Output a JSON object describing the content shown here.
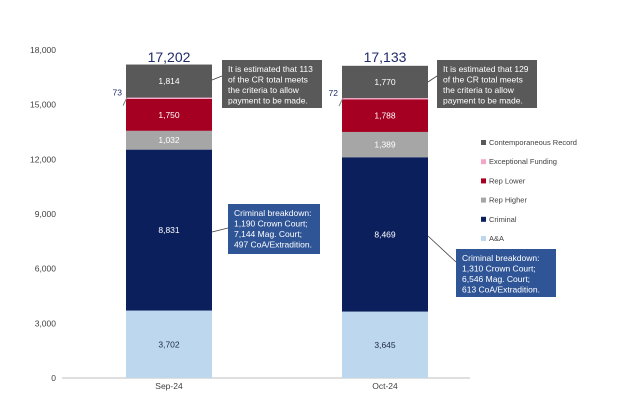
{
  "chart_data": {
    "type": "bar",
    "stacked": true,
    "categories": [
      "Sep-24",
      "Oct-24"
    ],
    "totals": [
      "17,202",
      "17,133"
    ],
    "ylim": [
      0,
      18000
    ],
    "yticks": [
      {
        "value": 0,
        "label": "0"
      },
      {
        "value": 3000,
        "label": "3,000"
      },
      {
        "value": 6000,
        "label": "6,000"
      },
      {
        "value": 9000,
        "label": "9,000"
      },
      {
        "value": 12000,
        "label": "12,000"
      },
      {
        "value": 15000,
        "label": "15,000"
      },
      {
        "value": 18000,
        "label": "18,000"
      }
    ],
    "series": [
      {
        "name": "A&A",
        "color": "#bdd7ee",
        "values": [
          3702,
          3645
        ],
        "labels": [
          "3,702",
          "3,645"
        ],
        "label_color": "#1f2a44"
      },
      {
        "name": "Criminal",
        "color": "#0b1f5c",
        "values": [
          8831,
          8469
        ],
        "labels": [
          "8,831",
          "8,469"
        ],
        "label_color": "#ffffff"
      },
      {
        "name": "Rep Higher",
        "color": "#a6a6a6",
        "values": [
          1032,
          1389
        ],
        "labels": [
          "1,032",
          "1,389"
        ],
        "label_color": "#ffffff"
      },
      {
        "name": "Rep Lower",
        "color": "#a50021",
        "values": [
          1750,
          1788
        ],
        "labels": [
          "1,750",
          "1,788"
        ],
        "label_color": "#ffffff"
      },
      {
        "name": "Exceptional Funding",
        "color": "#f4a6c8",
        "values": [
          73,
          72
        ],
        "labels": [
          "73",
          "72"
        ],
        "label_color": "#1f2a6b"
      },
      {
        "name": "Contemporaneous Record",
        "color": "#595959",
        "values": [
          1814,
          1770
        ],
        "labels": [
          "1,814",
          "1,770"
        ],
        "label_color": "#ffffff"
      }
    ],
    "legend_order": [
      "Contemporaneous Record",
      "Exceptional Funding",
      "Rep Lower",
      "Rep Higher",
      "Criminal",
      "A&A"
    ],
    "legend_position": "right",
    "annotations": {
      "cr": [
        [
          "It is estimated that 113",
          "of the CR total meets",
          "the criteria to allow",
          "payment to be made."
        ],
        [
          "It is estimated that 129",
          "of the CR total meets",
          "the criteria to allow",
          "payment to be made."
        ]
      ],
      "criminal": [
        [
          "Criminal breakdown:",
          "1,190 Crown Court;",
          "7,144 Mag. Court;",
          "497 CoA/Extradition."
        ],
        [
          "Criminal breakdown:",
          "1,310 Crown Court;",
          "6,546 Mag. Court;",
          "613 CoA/Extradition."
        ]
      ]
    },
    "colors": {
      "cr_callout": "#595959",
      "criminal_callout": "#2f5597",
      "total_label": "#1f2a6b",
      "axis_label": "#404040"
    }
  }
}
